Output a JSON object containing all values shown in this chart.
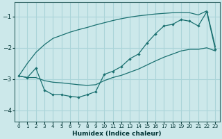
{
  "xlabel": "Humidex (Indice chaleur)",
  "background_color": "#cce8ea",
  "grid_color": "#aad4d8",
  "line_color": "#1a7070",
  "xlim": [
    -0.5,
    23.5
  ],
  "ylim": [
    -4.35,
    -0.55
  ],
  "yticks": [
    -4,
    -3,
    -2,
    -1
  ],
  "xticks": [
    0,
    1,
    2,
    3,
    4,
    5,
    6,
    7,
    8,
    9,
    10,
    11,
    12,
    13,
    14,
    15,
    16,
    17,
    18,
    19,
    20,
    21,
    22,
    23
  ],
  "x": [
    0,
    1,
    2,
    3,
    4,
    5,
    6,
    7,
    8,
    9,
    10,
    11,
    12,
    13,
    14,
    15,
    16,
    17,
    18,
    19,
    20,
    21,
    22,
    23
  ],
  "line_main": [
    -2.9,
    -2.95,
    -2.65,
    -3.35,
    -3.5,
    -3.5,
    -3.55,
    -3.58,
    -3.5,
    -3.4,
    -2.85,
    -2.75,
    -2.6,
    -2.35,
    -2.2,
    -1.85,
    -1.55,
    -1.3,
    -1.25,
    -1.1,
    -1.15,
    -1.3,
    -0.85,
    -2.05
  ],
  "line_upper": [
    -2.9,
    -2.5,
    -2.15,
    -1.9,
    -1.7,
    -1.6,
    -1.5,
    -1.42,
    -1.35,
    -1.27,
    -1.2,
    -1.13,
    -1.07,
    -1.02,
    -0.98,
    -0.95,
    -0.92,
    -0.9,
    -0.88,
    -0.87,
    -0.88,
    -0.95,
    -0.82,
    -1.97
  ],
  "line_lower": [
    -2.9,
    -2.95,
    -2.95,
    -3.05,
    -3.1,
    -3.12,
    -3.15,
    -3.18,
    -3.2,
    -3.18,
    -3.05,
    -2.95,
    -2.88,
    -2.78,
    -2.68,
    -2.55,
    -2.42,
    -2.3,
    -2.2,
    -2.1,
    -2.05,
    -2.05,
    -2.0,
    -2.1
  ]
}
